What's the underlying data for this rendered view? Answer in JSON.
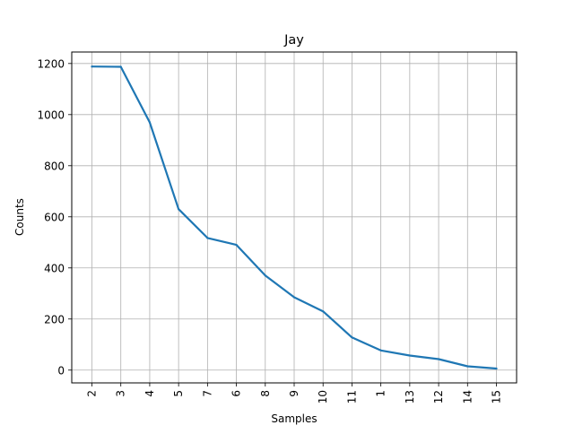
{
  "chart_data": {
    "type": "line",
    "title": "Jay",
    "xlabel": "Samples",
    "ylabel": "Counts",
    "categories": [
      "2",
      "3",
      "4",
      "5",
      "7",
      "6",
      "8",
      "9",
      "10",
      "11",
      "1",
      "13",
      "12",
      "14",
      "15"
    ],
    "series": [
      {
        "values": [
          1188,
          1187,
          970,
          630,
          517,
          490,
          370,
          285,
          230,
          128,
          77,
          57,
          43,
          15,
          6
        ],
        "color": "#1f77b4"
      }
    ],
    "ylim": [
      -50,
      1245
    ],
    "yticks": [
      0,
      200,
      400,
      600,
      800,
      1000,
      1200
    ],
    "grid": true,
    "legend": "none"
  }
}
